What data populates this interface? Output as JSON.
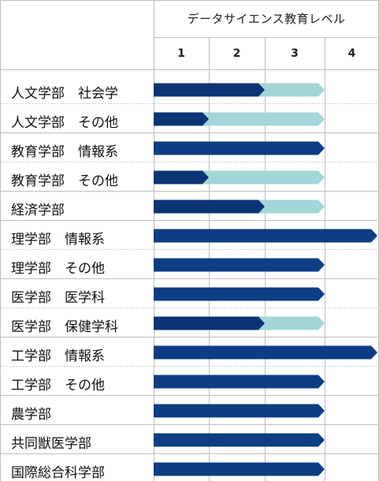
{
  "header": {
    "title": "データサイエンス教育レベル",
    "levels": [
      "1",
      "2",
      "3",
      "4"
    ]
  },
  "colors": {
    "dark": "#0b3474",
    "mid": "#0d3d83",
    "light": "#a4d6d7",
    "grid": "#bfbfbf"
  },
  "rows": [
    {
      "label": "人文学部　社会学",
      "achieved": 2,
      "target": 3
    },
    {
      "label": "人文学部　その他",
      "achieved": 1,
      "target": 3
    },
    {
      "label": "教育学部　情報系",
      "achieved": 3,
      "target": 3
    },
    {
      "label": "教育学部　その他",
      "achieved": 1,
      "target": 3
    },
    {
      "label": "経済学部",
      "achieved": 2,
      "target": 3
    },
    {
      "label": "理学部　情報系",
      "achieved": 4,
      "target": 4
    },
    {
      "label": "理学部　その他",
      "achieved": 3,
      "target": 3
    },
    {
      "label": "医学部　医学科",
      "achieved": 3,
      "target": 3
    },
    {
      "label": "医学部　保健学科",
      "achieved": 2,
      "target": 3
    },
    {
      "label": "工学部　情報系",
      "achieved": 4,
      "target": 4
    },
    {
      "label": "工学部　その他",
      "achieved": 3,
      "target": 3
    },
    {
      "label": "農学部",
      "achieved": 3,
      "target": 3
    },
    {
      "label": "共同獣医学部",
      "achieved": 3,
      "target": 3
    },
    {
      "label": "国際総合科学部",
      "achieved": 3,
      "target": 3
    }
  ]
}
